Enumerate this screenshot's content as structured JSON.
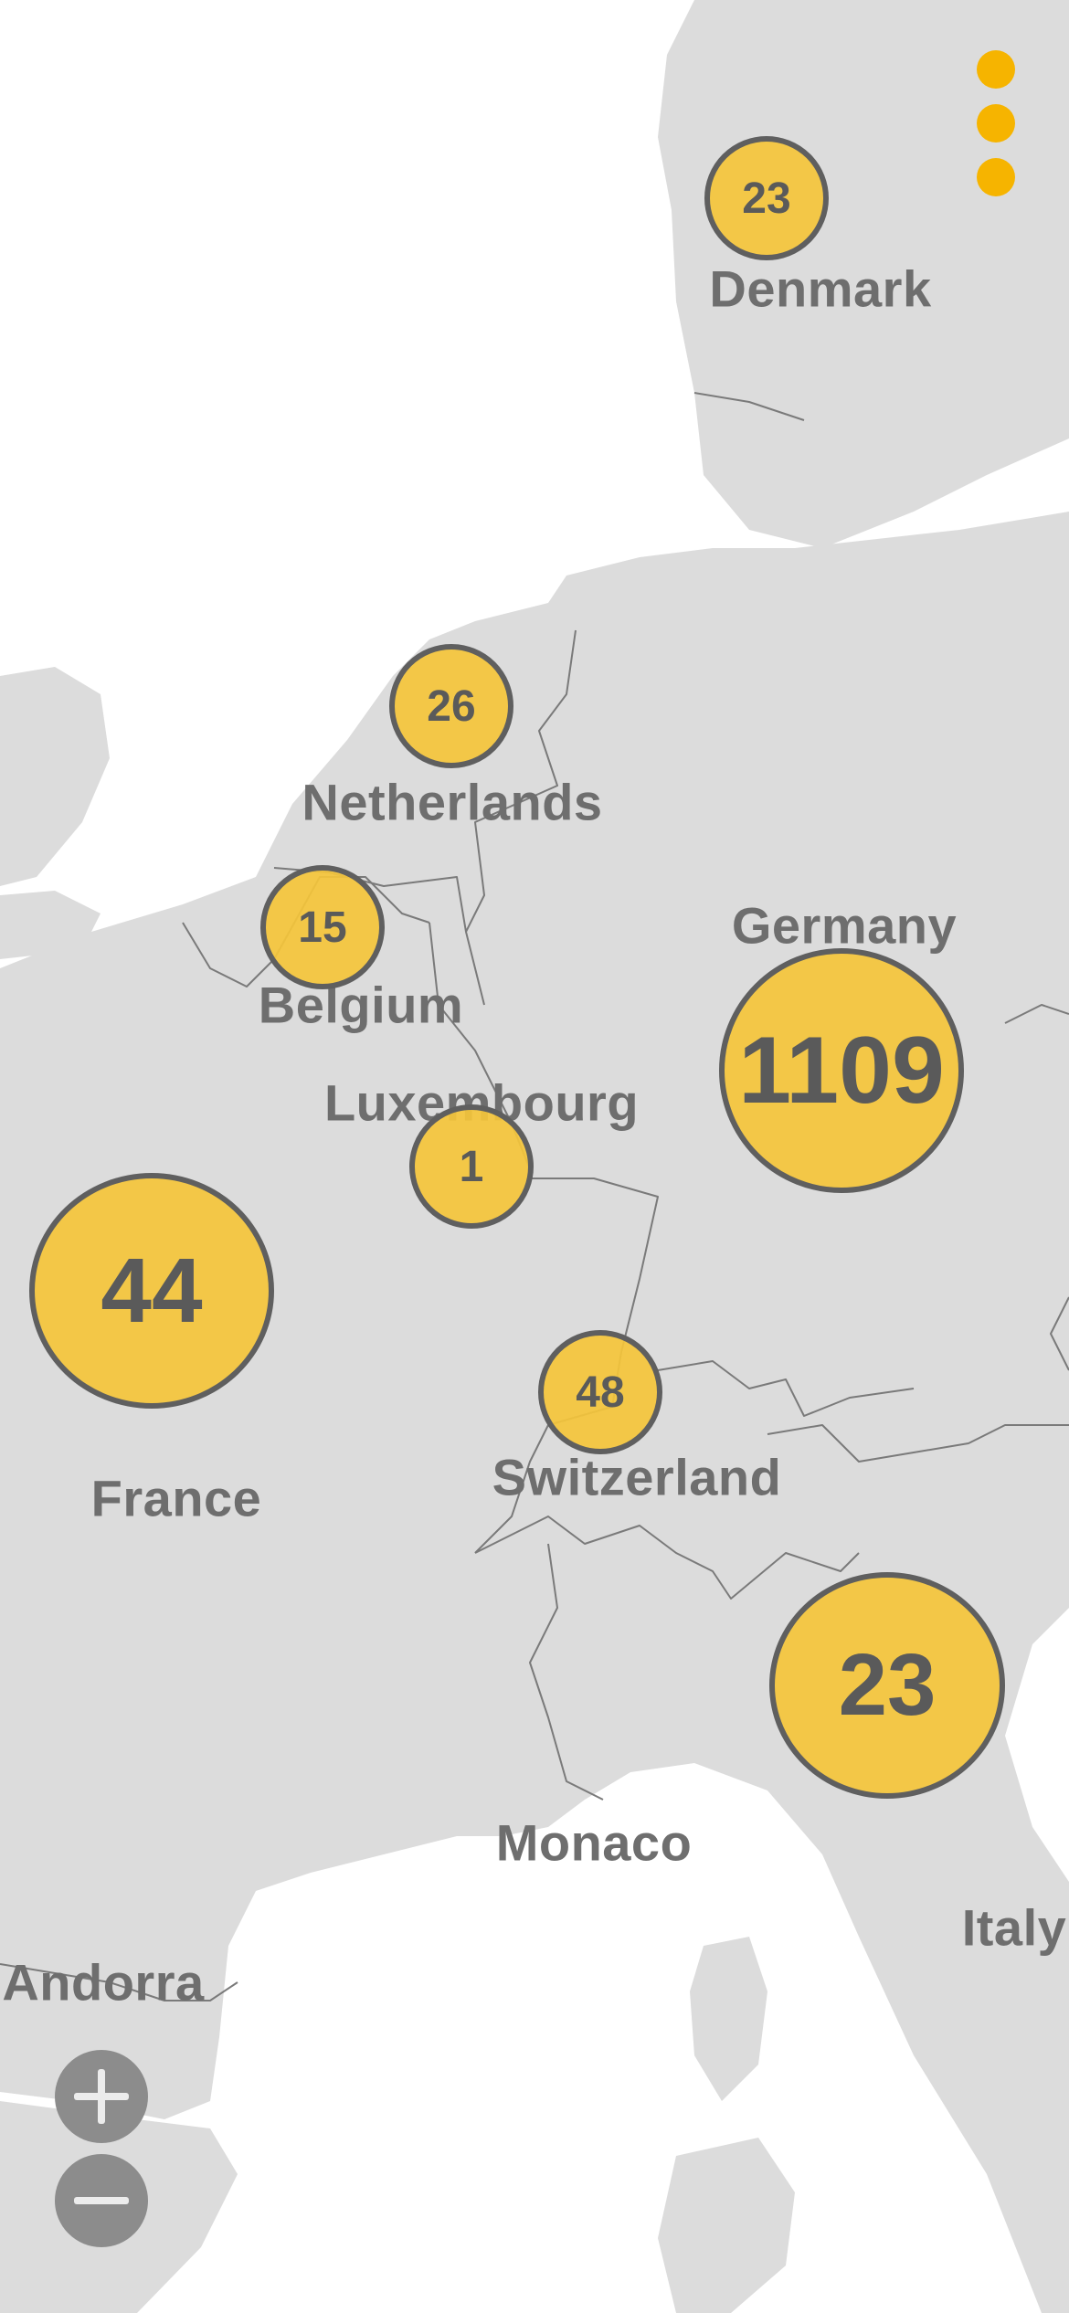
{
  "countries": {
    "denmark": "Denmark",
    "netherlands": "Netherlands",
    "germany": "Germany",
    "belgium": "Belgium",
    "luxembourg": "Luxembourg",
    "france": "France",
    "switzerland": "Switzerland",
    "monaco": "Monaco",
    "italy": "Italy",
    "andorra": "Andorra"
  },
  "clusters": {
    "denmark": "23",
    "netherlands": "26",
    "belgium": "15",
    "luxembourg": "1",
    "germany": "1109",
    "france": "44",
    "switzerland": "48",
    "italy": "23"
  },
  "controls": {
    "menu_icon": "more-vertical-icon",
    "zoom_in_icon": "plus-icon",
    "zoom_out_icon": "minus-icon"
  },
  "colors": {
    "cluster_fill": "#f4c439",
    "cluster_stroke": "#5f5f5f",
    "menu_accent": "#f6b400",
    "land": "#dcdcdc",
    "sea": "#ffffff",
    "zoom_button": "#8c8c8c"
  }
}
